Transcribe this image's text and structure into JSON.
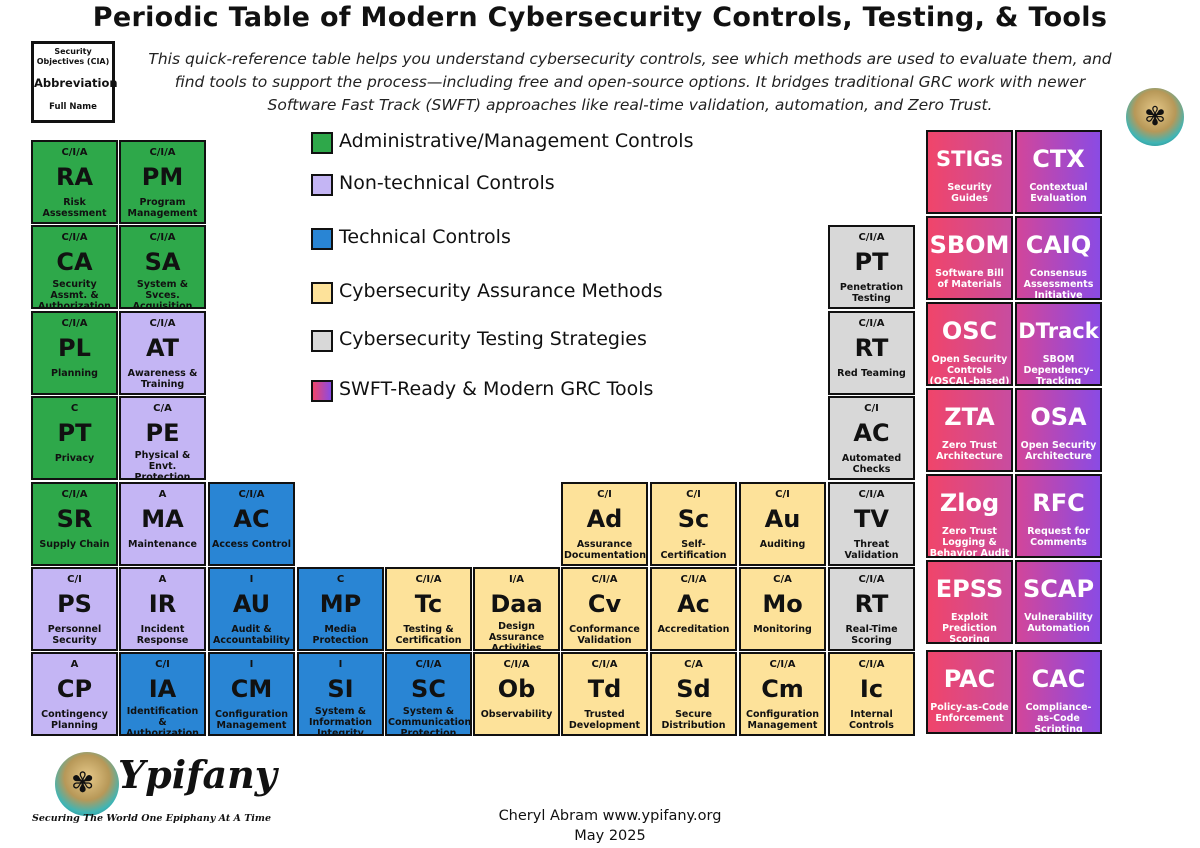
{
  "title": "Periodic Table of Modern Cybersecurity Controls, Testing, & Tools",
  "intro": "This quick-reference table helps you understand cybersecurity controls, see which methods are used to evaluate them, and find tools to support the process—including free and open-source options. It bridges traditional GRC work with newer Software Fast Track (SWFT) approaches like real-time validation, automation, and Zero Trust.",
  "key": {
    "objectives": "Security Objectives (CIA)",
    "abbreviation": "Abbreviation",
    "full_name": "Full Name"
  },
  "colors": {
    "admin": "#2ea84a",
    "nontech": "#c4b5f4",
    "tech": "#2985d4",
    "assurance": "#fde29a",
    "testing": "#d8d8d8",
    "tools_from": "#f0456a",
    "tools_to": "#8a4be4"
  },
  "legend": [
    {
      "label": "Administrative/Management Controls",
      "color": "admin"
    },
    {
      "label": "Non-technical Controls",
      "color": "nontech"
    },
    {
      "label": "Technical Controls",
      "color": "tech"
    },
    {
      "label": "Cybersecurity Assurance Methods",
      "color": "assurance"
    },
    {
      "label": "Cybersecurity Testing Strategies",
      "color": "testing"
    },
    {
      "label": "SWFT-Ready & Modern GRC Tools",
      "color": "tools"
    }
  ],
  "elements": [
    {
      "col": 0,
      "row": 0,
      "cat": "admin",
      "cia": "C/I/A",
      "abbr": "RA",
      "full": "Risk Assessment"
    },
    {
      "col": 1,
      "row": 0,
      "cat": "admin",
      "cia": "C/I/A",
      "abbr": "PM",
      "full": "Program Management"
    },
    {
      "col": 0,
      "row": 1,
      "cat": "admin",
      "cia": "C/I/A",
      "abbr": "CA",
      "full": "Security Assmt. & Authorization"
    },
    {
      "col": 1,
      "row": 1,
      "cat": "admin",
      "cia": "C/I/A",
      "abbr": "SA",
      "full": "System & Svces. Acquisition"
    },
    {
      "col": 0,
      "row": 2,
      "cat": "admin",
      "cia": "C/I/A",
      "abbr": "PL",
      "full": "Planning"
    },
    {
      "col": 1,
      "row": 2,
      "cat": "nontech",
      "cia": "C/I/A",
      "abbr": "AT",
      "full": "Awareness & Training"
    },
    {
      "col": 0,
      "row": 3,
      "cat": "admin",
      "cia": "C",
      "abbr": "PT",
      "full": "Privacy"
    },
    {
      "col": 1,
      "row": 3,
      "cat": "nontech",
      "cia": "C/A",
      "abbr": "PE",
      "full": "Physical & Envt. Protection"
    },
    {
      "col": 0,
      "row": 4,
      "cat": "admin",
      "cia": "C/I/A",
      "abbr": "SR",
      "full": "Supply Chain"
    },
    {
      "col": 1,
      "row": 4,
      "cat": "nontech",
      "cia": "A",
      "abbr": "MA",
      "full": "Maintenance"
    },
    {
      "col": 2,
      "row": 4,
      "cat": "tech",
      "cia": "C/I/A",
      "abbr": "AC",
      "full": "Access Control"
    },
    {
      "col": 6,
      "row": 4,
      "cat": "assurance",
      "cia": "C/I",
      "abbr": "Ad",
      "full": "Assurance Documentation"
    },
    {
      "col": 7,
      "row": 4,
      "cat": "assurance",
      "cia": "C/I",
      "abbr": "Sc",
      "full": "Self-Certification"
    },
    {
      "col": 8,
      "row": 4,
      "cat": "assurance",
      "cia": "C/I",
      "abbr": "Au",
      "full": "Auditing"
    },
    {
      "col": 9,
      "row": 4,
      "cat": "testing",
      "cia": "C/I/A",
      "abbr": "TV",
      "full": "Threat Validation"
    },
    {
      "col": 0,
      "row": 5,
      "cat": "nontech",
      "cia": "C/I",
      "abbr": "PS",
      "full": "Personnel Security"
    },
    {
      "col": 1,
      "row": 5,
      "cat": "nontech",
      "cia": "A",
      "abbr": "IR",
      "full": "Incident Response"
    },
    {
      "col": 2,
      "row": 5,
      "cat": "tech",
      "cia": "I",
      "abbr": "AU",
      "full": "Audit & Accountability"
    },
    {
      "col": 3,
      "row": 5,
      "cat": "tech",
      "cia": "C",
      "abbr": "MP",
      "full": "Media Protection"
    },
    {
      "col": 4,
      "row": 5,
      "cat": "assurance",
      "cia": "C/I/A",
      "abbr": "Tc",
      "full": "Testing & Certification"
    },
    {
      "col": 5,
      "row": 5,
      "cat": "assurance",
      "cia": "I/A",
      "abbr": "Daa",
      "full": "Design Assurance Activities"
    },
    {
      "col": 6,
      "row": 5,
      "cat": "assurance",
      "cia": "C/I/A",
      "abbr": "Cv",
      "full": "Conformance Validation"
    },
    {
      "col": 7,
      "row": 5,
      "cat": "assurance",
      "cia": "C/I/A",
      "abbr": "Ac",
      "full": "Accreditation"
    },
    {
      "col": 8,
      "row": 5,
      "cat": "assurance",
      "cia": "C/A",
      "abbr": "Mo",
      "full": "Monitoring"
    },
    {
      "col": 9,
      "row": 5,
      "cat": "testing",
      "cia": "C/I/A",
      "abbr": "RT",
      "full": "Real-Time Scoring"
    },
    {
      "col": 0,
      "row": 6,
      "cat": "nontech",
      "cia": "A",
      "abbr": "CP",
      "full": "Contingency Planning"
    },
    {
      "col": 1,
      "row": 6,
      "cat": "tech",
      "cia": "C/I",
      "abbr": "IA",
      "full": "Identification & Authorization"
    },
    {
      "col": 2,
      "row": 6,
      "cat": "tech",
      "cia": "I",
      "abbr": "CM",
      "full": "Configuration Management"
    },
    {
      "col": 3,
      "row": 6,
      "cat": "tech",
      "cia": "I",
      "abbr": "SI",
      "full": "System & Information Integrity"
    },
    {
      "col": 4,
      "row": 6,
      "cat": "tech",
      "cia": "C/I/A",
      "abbr": "SC",
      "full": "System & Communication Protection"
    },
    {
      "col": 5,
      "row": 6,
      "cat": "assurance",
      "cia": "C/I/A",
      "abbr": "Ob",
      "full": "Observability"
    },
    {
      "col": 6,
      "row": 6,
      "cat": "assurance",
      "cia": "C/I/A",
      "abbr": "Td",
      "full": "Trusted Development"
    },
    {
      "col": 7,
      "row": 6,
      "cat": "assurance",
      "cia": "C/A",
      "abbr": "Sd",
      "full": "Secure Distribution"
    },
    {
      "col": 8,
      "row": 6,
      "cat": "assurance",
      "cia": "C/I/A",
      "abbr": "Cm",
      "full": "Configuration Management"
    },
    {
      "col": 9,
      "row": 6,
      "cat": "assurance",
      "cia": "C/I/A",
      "abbr": "Ic",
      "full": "Internal Controls"
    },
    {
      "col": 9,
      "row": 1,
      "cat": "testing",
      "cia": "C/I/A",
      "abbr": "PT",
      "full": "Penetration Testing"
    },
    {
      "col": 9,
      "row": 2,
      "cat": "testing",
      "cia": "C/I/A",
      "abbr": "RT",
      "full": "Red Teaming"
    },
    {
      "col": 9,
      "row": 3,
      "cat": "testing",
      "cia": "C/I",
      "abbr": "AC",
      "full": "Automated Checks"
    }
  ],
  "tools": [
    {
      "col": 0,
      "row": 0,
      "abbr": "STIGs",
      "full": "Security Guides"
    },
    {
      "col": 1,
      "row": 0,
      "abbr": "CTX",
      "full": "Contextual Evaluation"
    },
    {
      "col": 0,
      "row": 1,
      "abbr": "SBOM",
      "full": "Software Bill of Materials"
    },
    {
      "col": 1,
      "row": 1,
      "abbr": "CAIQ",
      "full": "Consensus Assessments Initiative Questionnaire"
    },
    {
      "col": 0,
      "row": 2,
      "abbr": "OSC",
      "full": "Open Security Controls (OSCAL-based)"
    },
    {
      "col": 1,
      "row": 2,
      "abbr": "DTrack",
      "full": "SBOM Dependency-Tracking"
    },
    {
      "col": 0,
      "row": 3,
      "abbr": "ZTA",
      "full": "Zero Trust Architecture"
    },
    {
      "col": 1,
      "row": 3,
      "abbr": "OSA",
      "full": "Open Security Architecture"
    },
    {
      "col": 0,
      "row": 4,
      "abbr": "Zlog",
      "full": "Zero Trust Logging & Behavior Audit"
    },
    {
      "col": 1,
      "row": 4,
      "abbr": "RFC",
      "full": "Request for Comments"
    },
    {
      "col": 0,
      "row": 5,
      "abbr": "EPSS",
      "full": "Exploit Prediction Scoring System"
    },
    {
      "col": 1,
      "row": 5,
      "abbr": "SCAP",
      "full": "Vulnerability Automation"
    },
    {
      "col": 0,
      "row": 6,
      "abbr": "PAC",
      "full": "Policy-as-Code Enforcement"
    },
    {
      "col": 1,
      "row": 6,
      "abbr": "CAC",
      "full": "Compliance-as-Code Scripting"
    }
  ],
  "brand": {
    "name": "Ypifany",
    "tagline": "Securing The World One Epiphany At A Time"
  },
  "footer": {
    "author_line": "Cheryl Abram  www.ypifany.org",
    "date": "May 2025"
  }
}
